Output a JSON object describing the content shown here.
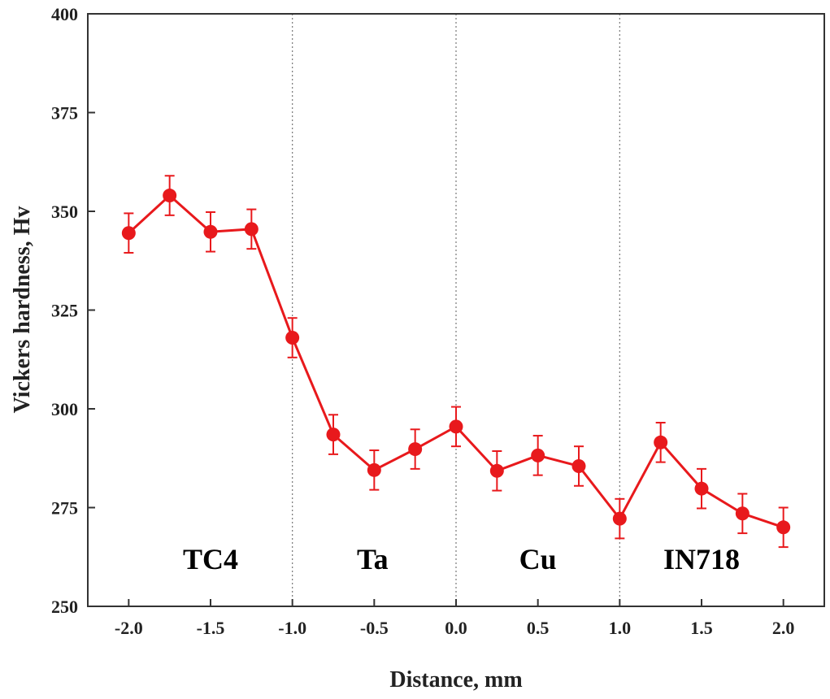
{
  "chart_data": {
    "type": "line",
    "xlabel": "Distance, mm",
    "ylabel": "Vickers hardness, Hv",
    "xlim": [
      -2.25,
      2.25
    ],
    "ylim": [
      250,
      400
    ],
    "xticks": [
      "-2.0",
      "-1.5",
      "-1.0",
      "-0.5",
      "0.0",
      "0.5",
      "1.0",
      "1.5",
      "2.0"
    ],
    "yticks": [
      "250",
      "275",
      "300",
      "325",
      "350",
      "375",
      "400"
    ],
    "grid": false,
    "boundaries": [
      -1.0,
      0.0,
      1.0
    ],
    "regions": [
      {
        "label": "TC4",
        "x": -1.5
      },
      {
        "label": "Ta",
        "x": -0.5
      },
      {
        "label": "Cu",
        "x": 0.5
      },
      {
        "label": "IN718",
        "x": 1.5
      }
    ],
    "series": [
      {
        "color": "#e8191c",
        "x": [
          -2.0,
          -1.75,
          -1.5,
          -1.25,
          -1.0,
          -0.75,
          -0.5,
          -0.25,
          0.0,
          0.25,
          0.5,
          0.75,
          1.0,
          1.25,
          1.5,
          1.75,
          2.0
        ],
        "y": [
          344.5,
          354,
          344.8,
          345.5,
          318,
          293.5,
          284.5,
          289.8,
          295.5,
          284.3,
          288.2,
          285.5,
          272.2,
          291.5,
          279.8,
          273.5,
          270
        ],
        "error": 5
      }
    ]
  }
}
